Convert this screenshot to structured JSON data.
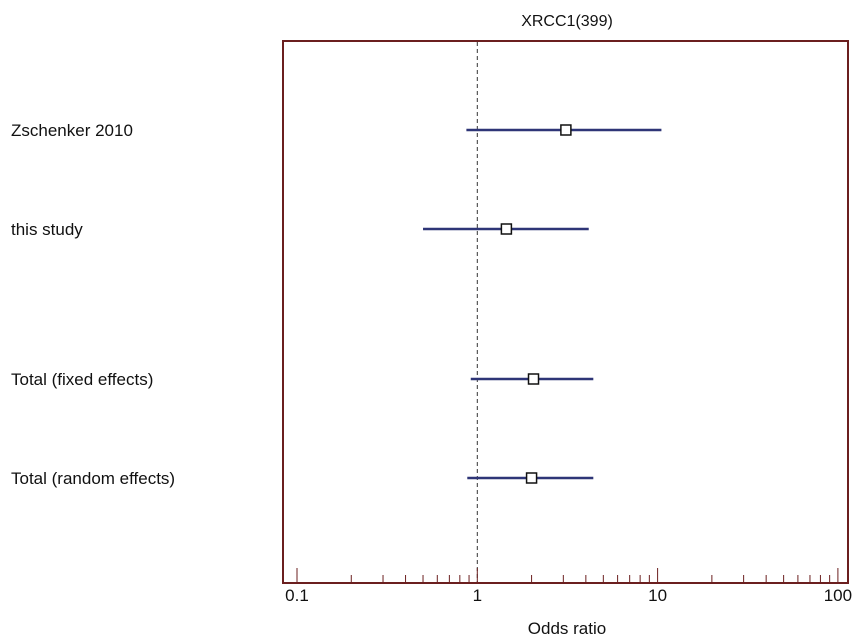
{
  "chart_data": {
    "type": "forest",
    "title": "XRCC1(399)",
    "xlabel": "Odds ratio",
    "x_scale": "log",
    "xlim": [
      0.08,
      120
    ],
    "x_ticks": [
      {
        "value": 0.1,
        "label": "0.1"
      },
      {
        "value": 1,
        "label": "1"
      },
      {
        "value": 10,
        "label": "10"
      },
      {
        "value": 100,
        "label": "100"
      }
    ],
    "reference_line": 1,
    "rows": [
      {
        "label": "Zschenker 2010",
        "or": 3.1,
        "lower": 0.87,
        "upper": 10.5
      },
      {
        "label": "this study",
        "or": 1.45,
        "lower": 0.5,
        "upper": 4.15
      },
      {
        "label": "Total (fixed effects)",
        "or": 2.05,
        "lower": 0.92,
        "upper": 4.4
      },
      {
        "label": "Total (random effects)",
        "or": 2.0,
        "lower": 0.88,
        "upper": 4.4
      }
    ],
    "colors": {
      "frame": "#6b1f1f",
      "ci_line": "#2e3577",
      "marker_fill": "#ffffff",
      "marker_stroke": "#111111",
      "reference_line": "#333333"
    }
  }
}
